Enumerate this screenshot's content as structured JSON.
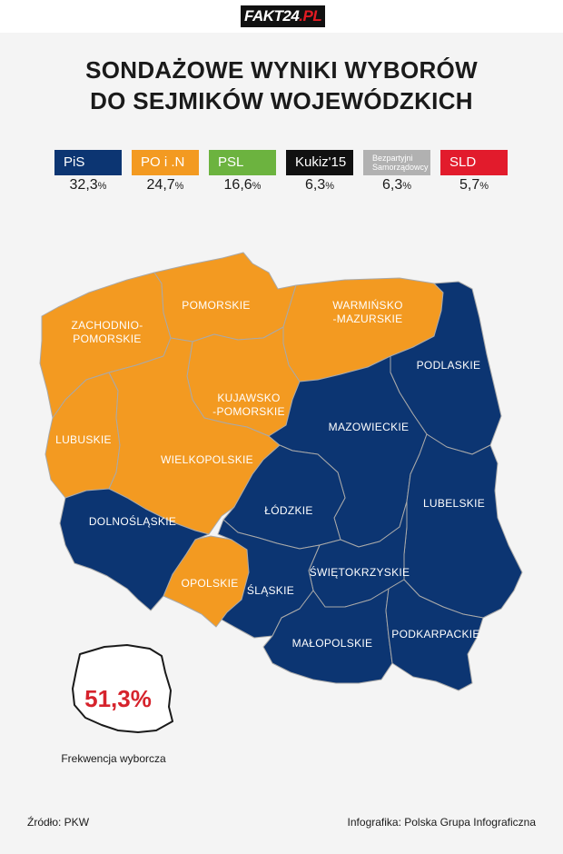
{
  "logo": {
    "main": "FAKT24",
    "suffix": ".PL"
  },
  "title": {
    "line1": "SONDAŻOWE WYNIKI WYBORÓW",
    "line2": "DO SEJMIKÓW WOJEWÓDZKICH"
  },
  "legend": [
    {
      "name": "PiS",
      "value": "32,3",
      "unit": "%",
      "color": "#0c3572"
    },
    {
      "name": "PO i .N",
      "value": "24,7",
      "unit": "%",
      "color": "#f39a21"
    },
    {
      "name": "PSL",
      "value": "16,6",
      "unit": "%",
      "color": "#6cb33f"
    },
    {
      "name": "Kukiz'15",
      "value": "6,3",
      "unit": "%",
      "color": "#111111"
    },
    {
      "name_line1": "Bezpartyjni",
      "name_line2": "Samorządowcy",
      "value": "6,3",
      "unit": "%",
      "color": "#b1b1b1"
    },
    {
      "name": "SLD",
      "value": "5,7",
      "unit": "%",
      "color": "#e21b2c"
    }
  ],
  "regions": {
    "zachodniopomorskie": {
      "line1": "ZACHODNIO-",
      "line2": "POMORSKIE",
      "winner": "PO i .N"
    },
    "pomorskie": {
      "line1": "POMORSKIE",
      "winner": "PO i .N"
    },
    "warminsko": {
      "line1": "WARMIŃSKO",
      "line2": "-MAZURSKIE",
      "winner": "PO i .N"
    },
    "kujawsko": {
      "line1": "KUJAWSKO",
      "line2": "-POMORSKIE",
      "winner": "PO i .N"
    },
    "lubuskie": {
      "line1": "LUBUSKIE",
      "winner": "PO i .N"
    },
    "wielkopolskie": {
      "line1": "WIELKOPOLSKIE",
      "winner": "PO i .N"
    },
    "opolskie": {
      "line1": "OPOLSKIE",
      "winner": "PO i .N"
    },
    "podlaskie": {
      "line1": "PODLASKIE",
      "winner": "PiS"
    },
    "mazowieckie": {
      "line1": "MAZOWIECKIE",
      "winner": "PiS"
    },
    "lodzkie": {
      "line1": "ŁÓDZKIE",
      "winner": "PiS"
    },
    "lubelskie": {
      "line1": "LUBELSKIE",
      "winner": "PiS"
    },
    "dolnoslaskie": {
      "line1": "DOLNOŚLĄSKIE",
      "winner": "PiS"
    },
    "swietokrzyskie": {
      "line1": "ŚWIĘTOKRZYSKIE",
      "winner": "PiS"
    },
    "slaskie": {
      "line1": "ŚLĄSKIE",
      "winner": "PiS"
    },
    "malopolskie": {
      "line1": "MAŁOPOLSKIE",
      "winner": "PiS"
    },
    "podkarpackie": {
      "line1": "PODKARPACKIE",
      "winner": "PiS"
    }
  },
  "turnout": {
    "value": "51,3%",
    "label": "Frekwencja wyborcza"
  },
  "footer": {
    "source": "Źródło: PKW",
    "credit": "Infografika: Polska Grupa Infograficzna"
  }
}
